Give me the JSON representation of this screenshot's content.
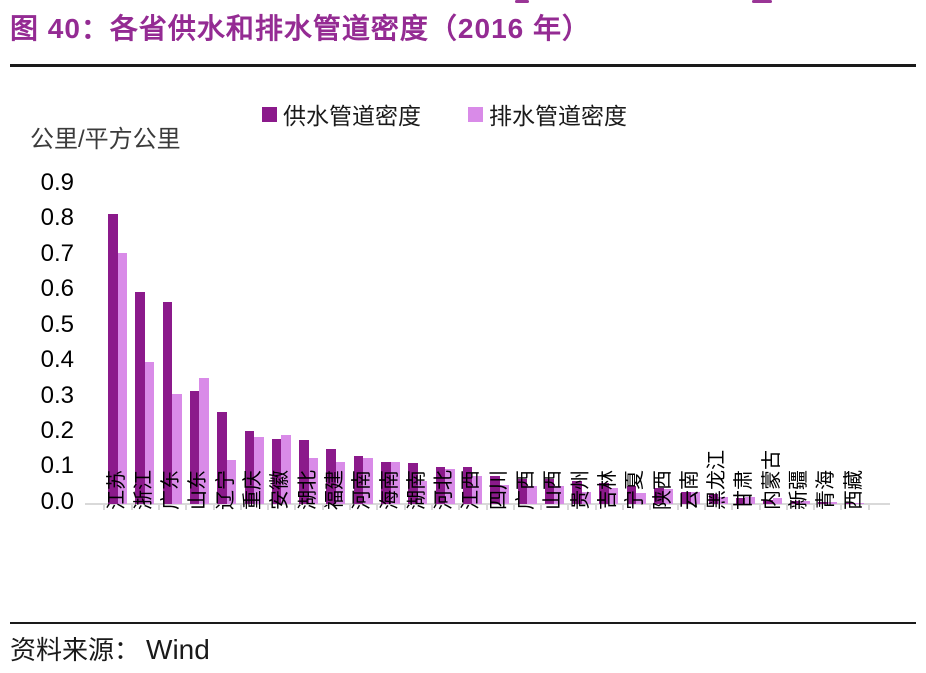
{
  "header": {
    "title": "图 40：各省供水和排水管道密度（2016 年）",
    "title_color": "#942b93"
  },
  "chart_data": {
    "type": "bar",
    "title": "各省供水和排水管道密度（2016 年）",
    "unit_label": "公里/平方公里",
    "xlabel": "",
    "ylabel": "公里/平方公里",
    "ylim": [
      0,
      0.9
    ],
    "yticks": [
      "0.9",
      "0.8",
      "0.7",
      "0.6",
      "0.5",
      "0.4",
      "0.3",
      "0.2",
      "0.1",
      "0.0"
    ],
    "grid": false,
    "legend_position": "top",
    "categories": [
      "江苏",
      "浙江",
      "广东",
      "山东",
      "辽宁",
      "重庆",
      "安徽",
      "湖北",
      "福建",
      "河南",
      "海南",
      "湖南",
      "河北",
      "江西",
      "四川",
      "广西",
      "山西",
      "贵州",
      "吉林",
      "宁夏",
      "陕西",
      "云南",
      "黑龙江",
      "甘肃",
      "内蒙古",
      "新疆",
      "青海",
      "西藏"
    ],
    "series": [
      {
        "name": "供水管道密度",
        "color": "#8b1a8b",
        "values": [
          0.82,
          0.6,
          0.57,
          0.32,
          0.26,
          0.205,
          0.185,
          0.18,
          0.155,
          0.135,
          0.12,
          0.115,
          0.105,
          0.105,
          0.08,
          0.071,
          0.072,
          0.065,
          0.06,
          0.05,
          0.045,
          0.033,
          0.028,
          0.016,
          0.012,
          0.008,
          0.005,
          0.002
        ]
      },
      {
        "name": "排水管道密度",
        "color": "#d98be8",
        "values": [
          0.71,
          0.4,
          0.31,
          0.355,
          0.125,
          0.19,
          0.195,
          0.13,
          0.12,
          0.13,
          0.12,
          0.065,
          0.1,
          0.08,
          0.055,
          0.05,
          0.052,
          0.033,
          0.045,
          0.031,
          0.042,
          0.035,
          0.02,
          0.019,
          0.016,
          0.01,
          0.007,
          0.004
        ]
      }
    ]
  },
  "footer": {
    "source_label": "资料来源：",
    "source_value": "Wind"
  }
}
